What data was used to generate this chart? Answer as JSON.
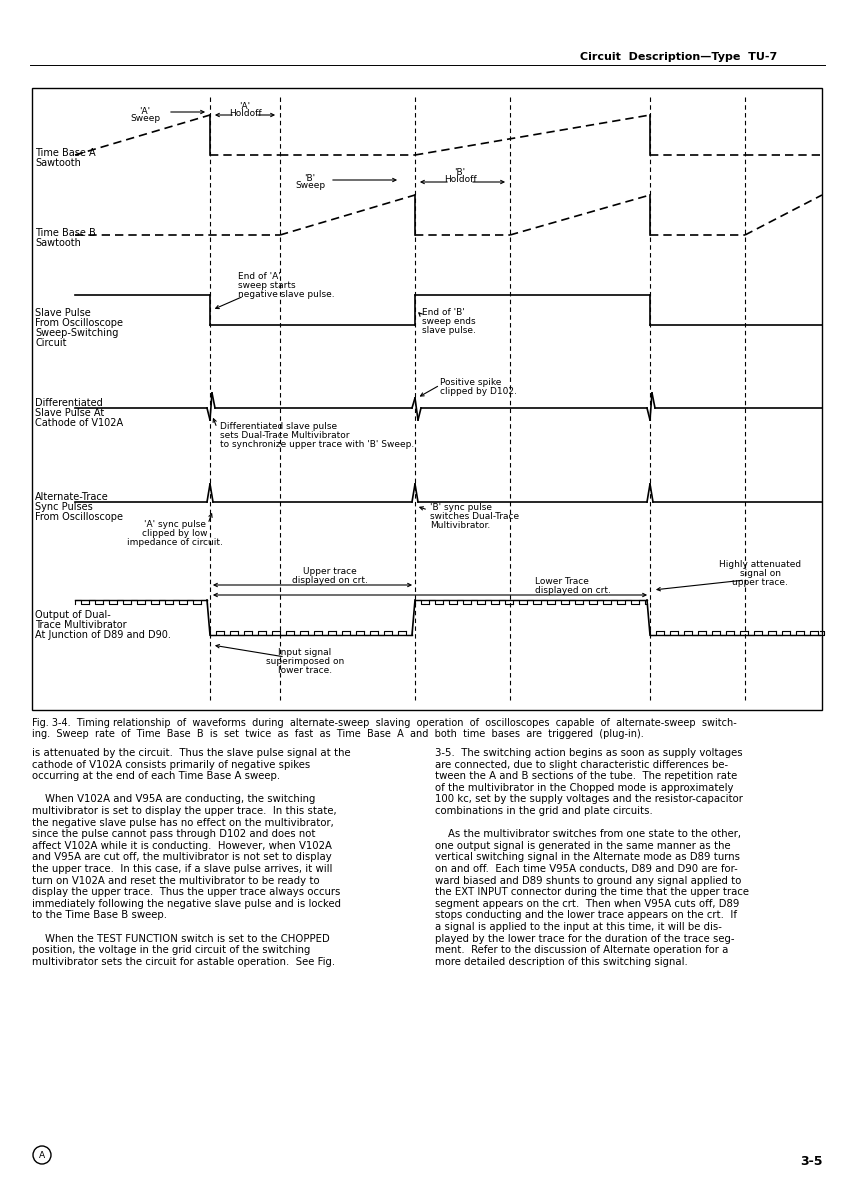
{
  "header_text": "Circuit  Description—Type  TU-7",
  "footer_right": "3-5",
  "fig_caption": "Fig. 3-4.  Timing relationship  of  waveforms  during  alternate-sweep  slaving  operation  of  oscilloscopes  capable  of  alternate-sweep  switch-\ning.  Sweep  rate  of  Time  Base  B  is  set  twice  as  fast  as  Time  Base  A  and  both  time  bases  are  triggered  (plug-in).",
  "body_col1": "is attenuated by the circuit.  Thus the slave pulse signal at the\ncathode of V102A consists primarily of negative spikes\noccurring at the end of each Time Base A sweep.\n\n    When V102A and V95A are conducting, the switching\nmultivibrator is set to display the upper trace.  In this state,\nthe negative slave pulse has no effect on the multivibrator,\nsince the pulse cannot pass through D102 and does not\naffect V102A while it is conducting.  However, when V102A\nand V95A are cut off, the multivibrator is not set to display\nthe upper trace.  In this case, if a slave pulse arrives, it will\nturn on V102A and reset the multivibrator to be ready to\ndisplay the upper trace.  Thus the upper trace always occurs\nimmediately following the negative slave pulse and is locked\nto the Time Base B sweep.\n\n    When the TEST FUNCTION switch is set to the CHOPPED\nposition, the voltage in the grid circuit of the switching\nmultivibrator sets the circuit for astable operation.  See Fig.",
  "body_col2": "3-5.  The switching action begins as soon as supply voltages\nare connected, due to slight characteristic differences be-\ntween the A and B sections of the tube.  The repetition rate\nof the multivibrator in the Chopped mode is approximately\n100 kc, set by the supply voltages and the resistor-capacitor\ncombinations in the grid and plate circuits.\n\n    As the multivibrator switches from one state to the other,\none output signal is generated in the same manner as the\nvertical switching signal in the Alternate mode as D89 turns\non and off.  Each time V95A conducts, D89 and D90 are for-\nward biased and D89 shunts to ground any signal applied to\nthe EXT INPUT connector during the time that the upper trace\nsegment appears on the crt.  Then when V95A cuts off, D89\nstops conducting and the lower trace appears on the crt.  If\na signal is applied to the input at this time, it will be dis-\nplayed by the lower trace for the duration of the trace seg-\nment.  Refer to the discussion of Alternate operation for a\nmore detailed description of this switching signal."
}
